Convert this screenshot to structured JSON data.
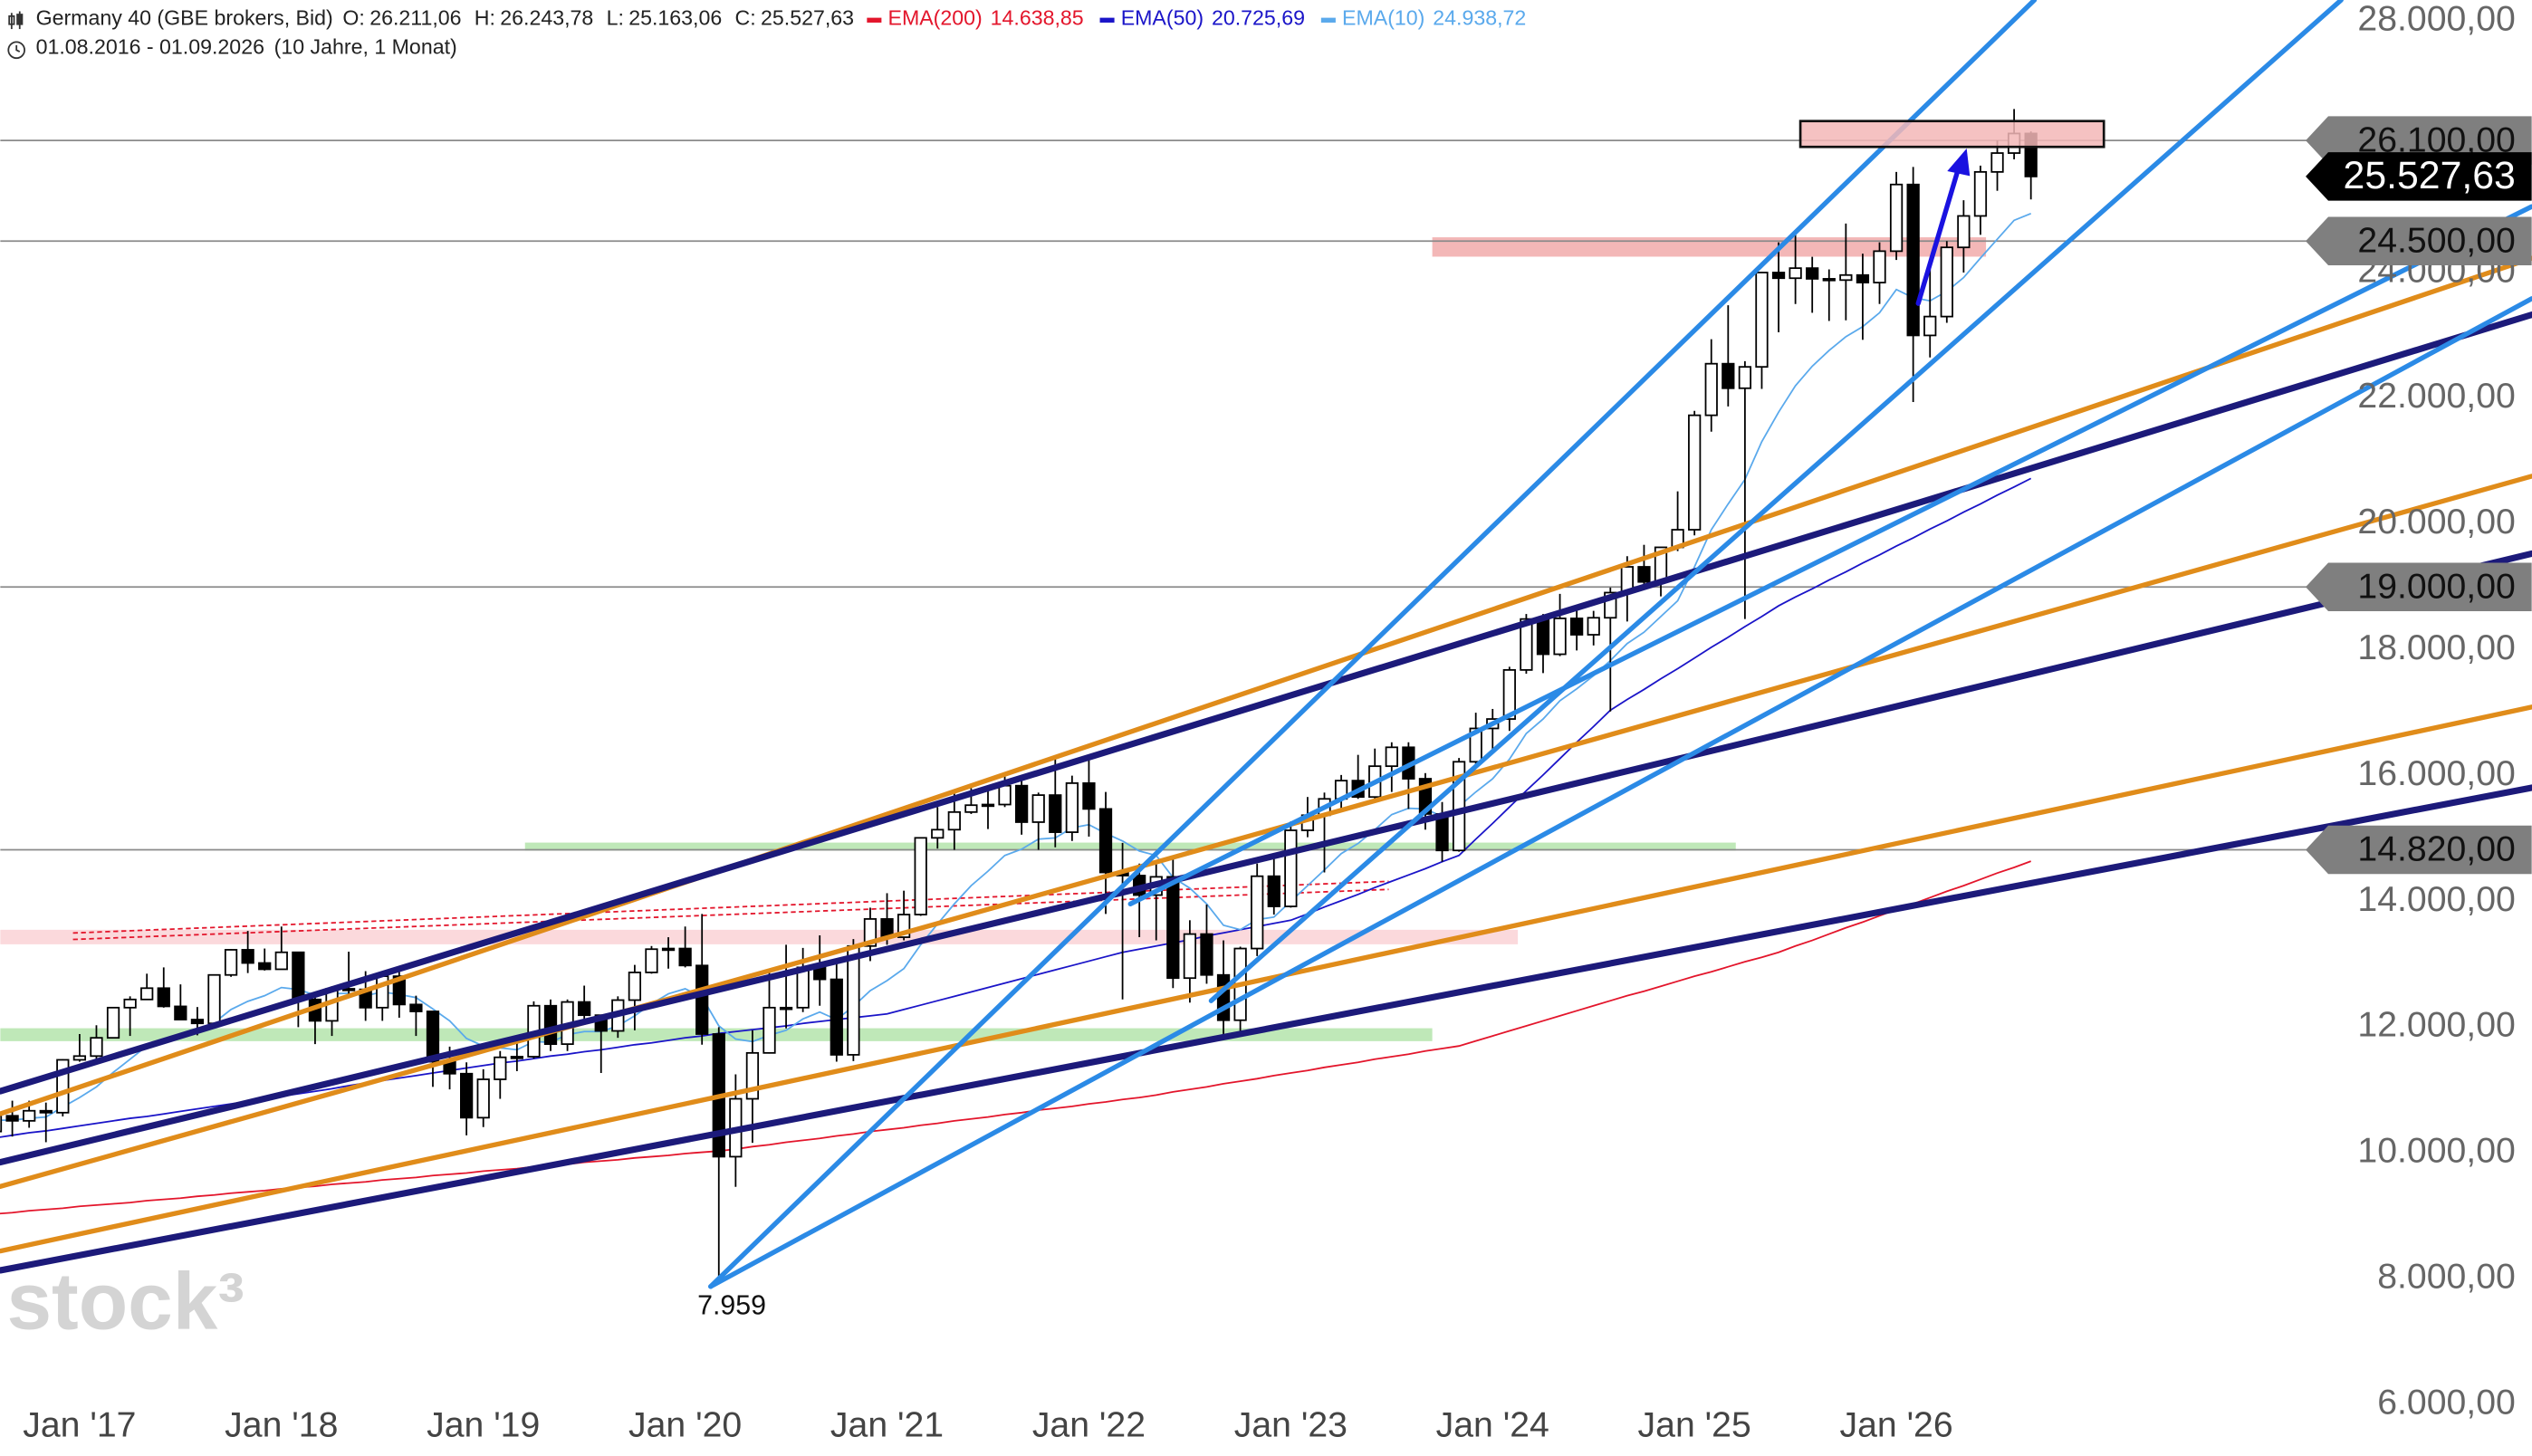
{
  "chart_data": {
    "type": "candlestick",
    "title": "Germany 40 (GBE brokers, Bid)",
    "subtitle": "01.08.2016 - 01.09.2026",
    "period": "(10 Jahre, 1 Monat)",
    "ohlc_header": [
      {
        "name": "O:",
        "value": 26211.06,
        "label": "26.211,06"
      },
      {
        "name": "H:",
        "value": 26243.78,
        "label": "26.243,78"
      },
      {
        "name": "L:",
        "value": 25163.06,
        "label": "25.163,06"
      },
      {
        "name": "C:",
        "value": 25527.63,
        "label": "25.527,63"
      }
    ],
    "watermark": "stock³",
    "grid": false,
    "up_color": "#ffffff",
    "down_color": "#000000",
    "ylim": [
      5180,
      28334
    ],
    "yticks": [
      {
        "value": 6000,
        "label": "6.000,00"
      },
      {
        "value": 8000,
        "label": "8.000,00"
      },
      {
        "value": 10000,
        "label": "10.000,00"
      },
      {
        "value": 12000,
        "label": "12.000,00"
      },
      {
        "value": 14000,
        "label": "14.000,00"
      },
      {
        "value": 16000,
        "label": "16.000,00"
      },
      {
        "value": 18000,
        "label": "18.000,00"
      },
      {
        "value": 20000,
        "label": "20.000,00"
      },
      {
        "value": 22000,
        "label": "22.000,00"
      },
      {
        "value": 24000,
        "label": "24.000,00"
      },
      {
        "value": 26000,
        "label": "26.000,00"
      },
      {
        "value": 28000,
        "label": "28.000,00"
      }
    ],
    "levels": [
      {
        "value": 26100,
        "label": "26.100,00"
      },
      {
        "value": 24500,
        "label": "24.500,00"
      },
      {
        "value": 19000,
        "label": "19.000,00"
      },
      {
        "value": 14820,
        "label": "14.820,00"
      }
    ],
    "current": {
      "value": 25527.63,
      "label": "25.527,63"
    },
    "low_annotation": {
      "index": 43,
      "value": 7959,
      "label": "7.959"
    },
    "categories": [
      null,
      null,
      null,
      null,
      null,
      "Jan '17",
      null,
      null,
      null,
      null,
      null,
      null,
      null,
      null,
      null,
      null,
      null,
      "Jan '18",
      null,
      null,
      null,
      null,
      null,
      null,
      null,
      null,
      null,
      null,
      null,
      "Jan '19",
      null,
      null,
      null,
      null,
      null,
      null,
      null,
      null,
      null,
      null,
      null,
      "Jan '20",
      null,
      null,
      null,
      null,
      null,
      null,
      null,
      null,
      null,
      null,
      null,
      "Jan '21",
      null,
      null,
      null,
      null,
      null,
      null,
      null,
      null,
      null,
      null,
      null,
      "Jan '22",
      null,
      null,
      null,
      null,
      null,
      null,
      null,
      null,
      null,
      null,
      null,
      "Jan '23",
      null,
      null,
      null,
      null,
      null,
      null,
      null,
      null,
      null,
      null,
      null,
      "Jan '24",
      null,
      null,
      null,
      null,
      null,
      null,
      null,
      null,
      null,
      null,
      null,
      "Jan '25",
      null,
      null,
      null,
      null,
      null,
      null,
      null,
      null,
      null,
      null,
      null,
      "Jan '26",
      null,
      null,
      null,
      null,
      null,
      null,
      null,
      null
    ],
    "ohlc": [
      [
        10340,
        10800,
        10150,
        10590
      ],
      [
        10590,
        10830,
        10260,
        10510
      ],
      [
        10510,
        10830,
        10400,
        10670
      ],
      [
        10670,
        10800,
        10170,
        10640
      ],
      [
        10640,
        11490,
        10580,
        11480
      ],
      [
        11480,
        11890,
        11450,
        11540
      ],
      [
        11540,
        12030,
        11410,
        11830
      ],
      [
        11830,
        12310,
        11820,
        12310
      ],
      [
        12310,
        12490,
        11860,
        12440
      ],
      [
        12440,
        12850,
        12430,
        12620
      ],
      [
        12620,
        12950,
        12310,
        12330
      ],
      [
        12330,
        12680,
        12120,
        12120
      ],
      [
        12120,
        12320,
        11870,
        12060
      ],
      [
        12060,
        12830,
        12050,
        12830
      ],
      [
        12830,
        13240,
        12800,
        13230
      ],
      [
        13230,
        13530,
        12860,
        13020
      ],
      [
        13020,
        13250,
        12900,
        12920
      ],
      [
        12920,
        13600,
        12920,
        13190
      ],
      [
        13190,
        13200,
        12000,
        12440
      ],
      [
        12440,
        12500,
        11730,
        12100
      ],
      [
        12100,
        12650,
        11860,
        12610
      ],
      [
        12610,
        13200,
        12530,
        12600
      ],
      [
        12600,
        12890,
        12100,
        12310
      ],
      [
        12310,
        12890,
        12100,
        12810
      ],
      [
        12810,
        12890,
        12150,
        12360
      ],
      [
        12360,
        12500,
        11860,
        12250
      ],
      [
        12250,
        12250,
        11050,
        11450
      ],
      [
        11450,
        11690,
        11010,
        11260
      ],
      [
        11260,
        11440,
        10280,
        10560
      ],
      [
        10560,
        11330,
        10410,
        11170
      ],
      [
        11170,
        11620,
        10860,
        11520
      ],
      [
        11520,
        11820,
        11300,
        11530
      ],
      [
        11530,
        12410,
        11500,
        12340
      ],
      [
        12340,
        12440,
        11620,
        11730
      ],
      [
        11730,
        12440,
        11620,
        12400
      ],
      [
        12400,
        12660,
        12130,
        12190
      ],
      [
        12190,
        12200,
        11270,
        11940
      ],
      [
        11940,
        12490,
        11830,
        12430
      ],
      [
        12430,
        12990,
        11950,
        12870
      ],
      [
        12870,
        13290,
        12850,
        13240
      ],
      [
        13240,
        13430,
        12930,
        13250
      ],
      [
        13250,
        13600,
        12950,
        12980
      ],
      [
        12980,
        13800,
        11720,
        11890
      ],
      [
        11890,
        12000,
        7959,
        9940
      ],
      [
        9940,
        11250,
        9460,
        10860
      ],
      [
        10860,
        11950,
        10160,
        11590
      ],
      [
        11590,
        12910,
        11580,
        12310
      ],
      [
        12310,
        13310,
        11980,
        12310
      ],
      [
        12310,
        13260,
        12240,
        12950
      ],
      [
        12950,
        13460,
        12340,
        12760
      ],
      [
        12760,
        13040,
        11450,
        11560
      ],
      [
        11560,
        13400,
        11460,
        13290
      ],
      [
        13290,
        13900,
        13050,
        13720
      ],
      [
        13720,
        14130,
        13310,
        13430
      ],
      [
        13430,
        14170,
        13380,
        13790
      ],
      [
        13790,
        15010,
        13770,
        15010
      ],
      [
        15010,
        15500,
        14840,
        15140
      ],
      [
        15140,
        15730,
        14820,
        15420
      ],
      [
        15420,
        15800,
        15390,
        15530
      ],
      [
        15530,
        15810,
        15150,
        15540
      ],
      [
        15540,
        16030,
        15500,
        15840
      ],
      [
        15840,
        15950,
        15060,
        15260
      ],
      [
        15260,
        15730,
        14820,
        15690
      ],
      [
        15690,
        16290,
        14860,
        15100
      ],
      [
        15100,
        16000,
        14960,
        15880
      ],
      [
        15880,
        16290,
        15030,
        15470
      ],
      [
        15470,
        15740,
        13800,
        14460
      ],
      [
        14460,
        14930,
        12440,
        14410
      ],
      [
        14410,
        14600,
        13430,
        14100
      ],
      [
        14100,
        14620,
        13380,
        14390
      ],
      [
        14390,
        14720,
        12620,
        12780
      ],
      [
        12780,
        13700,
        12390,
        13480
      ],
      [
        13480,
        13950,
        12690,
        12830
      ],
      [
        12830,
        13380,
        11860,
        12110
      ],
      [
        12110,
        13280,
        11860,
        13250
      ],
      [
        13250,
        14600,
        13130,
        14400
      ],
      [
        14400,
        14700,
        13790,
        13920
      ],
      [
        13920,
        15270,
        13900,
        15130
      ],
      [
        15130,
        15660,
        15020,
        15370
      ],
      [
        15370,
        15730,
        14460,
        15630
      ],
      [
        15630,
        16010,
        15440,
        15920
      ],
      [
        15920,
        16330,
        15630,
        15660
      ],
      [
        15660,
        16430,
        15630,
        16150
      ],
      [
        16150,
        16530,
        15740,
        16450
      ],
      [
        16450,
        16530,
        15470,
        15950
      ],
      [
        15950,
        16040,
        15140,
        15390
      ],
      [
        15390,
        15580,
        14630,
        14810
      ],
      [
        14810,
        16280,
        14790,
        16220
      ],
      [
        16220,
        17000,
        16160,
        16750
      ],
      [
        16750,
        17060,
        16350,
        16900
      ],
      [
        16900,
        17730,
        16710,
        17680
      ],
      [
        17680,
        18570,
        17620,
        18490
      ],
      [
        18490,
        18570,
        17630,
        17930
      ],
      [
        17930,
        18890,
        17900,
        18500
      ],
      [
        18500,
        18680,
        17990,
        18240
      ],
      [
        18240,
        18620,
        18070,
        18510
      ],
      [
        18510,
        18990,
        17020,
        18910
      ],
      [
        18910,
        19490,
        18450,
        19320
      ],
      [
        19320,
        19670,
        19010,
        19080
      ],
      [
        19080,
        19630,
        18850,
        19630
      ],
      [
        19630,
        20520,
        19570,
        19910
      ],
      [
        19910,
        21800,
        19820,
        21730
      ],
      [
        21730,
        22940,
        21470,
        22550
      ],
      [
        22550,
        23480,
        21870,
        22160
      ],
      [
        22160,
        22590,
        18490,
        22500
      ],
      [
        22500,
        24010,
        22150,
        24000
      ],
      [
        24000,
        24480,
        23050,
        23910
      ],
      [
        23910,
        24640,
        23500,
        24070
      ],
      [
        24070,
        24250,
        23360,
        23900
      ],
      [
        23900,
        24050,
        23230,
        23880
      ],
      [
        23880,
        24780,
        23240,
        23960
      ],
      [
        23960,
        24300,
        22930,
        23840
      ],
      [
        23840,
        24480,
        23500,
        24340
      ],
      [
        24340,
        25600,
        24200,
        25400
      ],
      [
        25400,
        25680,
        21940,
        23000
      ],
      [
        23000,
        24050,
        22650,
        23300
      ],
      [
        23300,
        24500,
        23200,
        24400
      ],
      [
        24400,
        25150,
        24000,
        24900
      ],
      [
        24900,
        25700,
        24600,
        25600
      ],
      [
        25600,
        26100,
        25300,
        25900
      ],
      [
        25900,
        26600,
        25800,
        26211.06
      ],
      [
        26211.06,
        26243.78,
        25163.06,
        25527.63
      ]
    ],
    "series": [
      {
        "name": "EMA(200)",
        "color": "#e3152b",
        "label": "14.638,85",
        "values": [
          9030,
          9050,
          9080,
          9100,
          9120,
          9150,
          9170,
          9190,
          9210,
          9240,
          9260,
          9280,
          9310,
          9330,
          9360,
          9380,
          9400,
          9430,
          9450,
          9470,
          9500,
          9520,
          9540,
          9570,
          9590,
          9610,
          9640,
          9660,
          9680,
          9710,
          9730,
          9750,
          9780,
          9800,
          9820,
          9850,
          9870,
          9890,
          9920,
          9940,
          9960,
          9990,
          10010,
          10030,
          10060,
          10100,
          10130,
          10170,
          10200,
          10230,
          10270,
          10300,
          10340,
          10370,
          10400,
          10440,
          10470,
          10510,
          10540,
          10570,
          10610,
          10640,
          10680,
          10710,
          10740,
          10780,
          10810,
          10850,
          10880,
          10920,
          10970,
          11010,
          11050,
          11100,
          11140,
          11180,
          11230,
          11270,
          11310,
          11360,
          11400,
          11440,
          11490,
          11530,
          11570,
          11620,
          11660,
          11700,
          11780,
          11860,
          11940,
          12020,
          12100,
          12180,
          12260,
          12340,
          12420,
          12500,
          12570,
          12650,
          12730,
          12810,
          12880,
          12960,
          13040,
          13110,
          13190,
          13290,
          13380,
          13480,
          13580,
          13670,
          13770,
          13870,
          13960,
          14060,
          14160,
          14250,
          14350,
          14450,
          14540,
          14638.85
        ]
      },
      {
        "name": "EMA(50)",
        "color": "#1a14c8",
        "label": "20.725,69",
        "values": [
          10240,
          10280,
          10320,
          10350,
          10390,
          10430,
          10470,
          10510,
          10550,
          10580,
          10620,
          10660,
          10700,
          10740,
          10780,
          10820,
          10860,
          10900,
          10940,
          10980,
          11020,
          11070,
          11110,
          11150,
          11190,
          11230,
          11270,
          11310,
          11350,
          11390,
          11430,
          11460,
          11500,
          11540,
          11570,
          11610,
          11640,
          11680,
          11720,
          11750,
          11790,
          11830,
          11860,
          11900,
          11930,
          11960,
          11990,
          12020,
          12060,
          12090,
          12120,
          12150,
          12180,
          12210,
          12280,
          12350,
          12420,
          12490,
          12560,
          12630,
          12700,
          12770,
          12840,
          12910,
          12980,
          13050,
          13120,
          13190,
          13240,
          13290,
          13340,
          13390,
          13450,
          13500,
          13550,
          13600,
          13650,
          13700,
          13800,
          13910,
          14010,
          14110,
          14220,
          14320,
          14420,
          14520,
          14630,
          14730,
          14990,
          15240,
          15500,
          15760,
          16010,
          16270,
          16530,
          16780,
          17040,
          17210,
          17370,
          17540,
          17700,
          17870,
          18040,
          18200,
          18370,
          18530,
          18700,
          18840,
          18970,
          19110,
          19240,
          19380,
          19510,
          19650,
          19780,
          19920,
          20050,
          20190,
          20320,
          20460,
          20590,
          20725.69
        ]
      },
      {
        "name": "EMA(10)",
        "color": "#5aa9ec",
        "label": "24.938,72",
        "values": [
          10520,
          10520,
          10550,
          10570,
          10730,
          10880,
          11050,
          11280,
          11490,
          11700,
          11810,
          11870,
          11900,
          12070,
          12280,
          12410,
          12500,
          12630,
          12600,
          12510,
          12530,
          12540,
          12500,
          12560,
          12520,
          12470,
          12290,
          12100,
          11820,
          11700,
          11670,
          11640,
          11770,
          11760,
          11880,
          11930,
          11930,
          12020,
          12180,
          12370,
          12530,
          12610,
          12480,
          12020,
          11810,
          11770,
          11870,
          11950,
          12130,
          12240,
          12120,
          12330,
          12580,
          12740,
          12930,
          13310,
          13640,
          13960,
          14250,
          14480,
          14730,
          14830,
          14990,
          15010,
          15170,
          15220,
          15080,
          14960,
          14800,
          14730,
          14380,
          14210,
          13960,
          13620,
          13550,
          13710,
          13750,
          14000,
          14250,
          14500,
          14760,
          14920,
          15140,
          15380,
          15480,
          15470,
          15350,
          15510,
          15740,
          15950,
          16260,
          16670,
          16900,
          17190,
          17380,
          17590,
          17830,
          18100,
          18280,
          18530,
          18780,
          19320,
          19910,
          20320,
          20710,
          21310,
          21780,
          22200,
          22510,
          22760,
          22980,
          23140,
          23360,
          23730,
          23600,
          23550,
          23700,
          23920,
          24230,
          24530,
          24830,
          24938.72
        ]
      }
    ]
  }
}
